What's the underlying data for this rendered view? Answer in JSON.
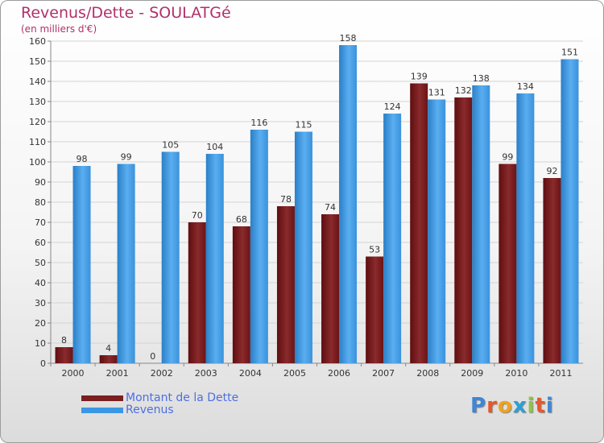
{
  "chart_data": {
    "type": "bar",
    "title": "Revenus/Dette - SOULATGé",
    "subtitle": "(en milliers d'€)",
    "categories": [
      "2000",
      "2001",
      "2002",
      "2003",
      "2004",
      "2005",
      "2006",
      "2007",
      "2008",
      "2009",
      "2010",
      "2011"
    ],
    "series": [
      {
        "name": "Montant de la Dette",
        "color": "#7a1e20",
        "values": [
          8,
          4,
          0,
          70,
          68,
          78,
          74,
          53,
          139,
          132,
          99,
          92
        ]
      },
      {
        "name": "Revenus",
        "color": "#3b97e3",
        "values": [
          98,
          99,
          105,
          104,
          116,
          115,
          158,
          124,
          131,
          138,
          134,
          151
        ]
      }
    ],
    "ylim": [
      0,
      160
    ],
    "yticks": [
      0,
      10,
      20,
      30,
      40,
      50,
      60,
      70,
      80,
      90,
      100,
      110,
      120,
      130,
      140,
      150,
      160
    ],
    "grid": true,
    "legend_position": "bottom-left"
  },
  "logo": {
    "letters": [
      "P",
      "r",
      "o",
      "x",
      "i",
      "t",
      "i"
    ],
    "colors": [
      "#3f86d6",
      "#e8562a",
      "#f0a21c",
      "#2a9fd6",
      "#8cc63f",
      "#e8562a",
      "#3f86d6"
    ]
  }
}
